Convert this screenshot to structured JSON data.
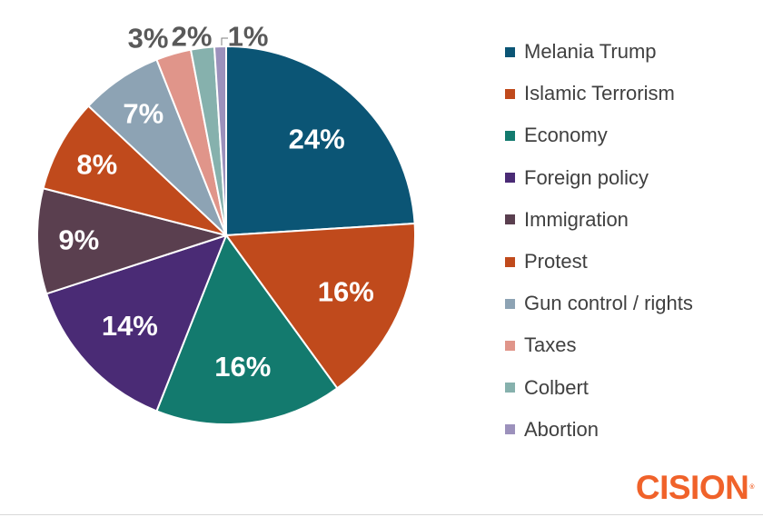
{
  "chart_data": {
    "type": "pie",
    "title": "",
    "slices": [
      {
        "label": "Melania Trump",
        "value": 24,
        "display": "24%",
        "color": "#0b5575",
        "text_color": "#ffffff"
      },
      {
        "label": "Islamic Terrorism",
        "value": 16,
        "display": "16%",
        "color": "#c04a1c",
        "text_color": "#ffffff"
      },
      {
        "label": "Economy",
        "value": 16,
        "display": "16%",
        "color": "#137a6e",
        "text_color": "#ffffff"
      },
      {
        "label": "Foreign policy",
        "value": 14,
        "display": "14%",
        "color": "#4a2b75",
        "text_color": "#ffffff"
      },
      {
        "label": "Immigration",
        "value": 9,
        "display": "9%",
        "color": "#5a3f4f",
        "text_color": "#ffffff"
      },
      {
        "label": "Protest",
        "value": 8,
        "display": "8%",
        "color": "#c04a1c",
        "text_color": "#ffffff"
      },
      {
        "label": "Gun control / rights",
        "value": 7,
        "display": "7%",
        "color": "#8da3b4",
        "text_color": "#ffffff"
      },
      {
        "label": "Taxes",
        "value": 3,
        "display": "3%",
        "color": "#e0958a",
        "text_color": "#595959"
      },
      {
        "label": "Colbert",
        "value": 2,
        "display": "2%",
        "color": "#86b1ad",
        "text_color": "#595959"
      },
      {
        "label": "Abortion",
        "value": 1,
        "display": "1%",
        "color": "#9c91bc",
        "text_color": "#595959"
      }
    ],
    "legend_position": "right"
  },
  "logo": {
    "text": "CISION",
    "mark": "®",
    "color": "#f0622a"
  }
}
